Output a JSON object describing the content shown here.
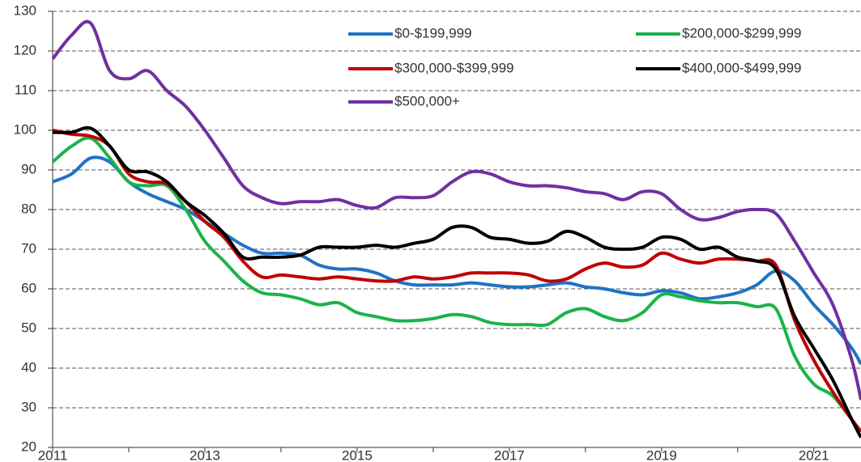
{
  "chart_data": {
    "type": "line",
    "x": [
      2011,
      2011.25,
      2011.5,
      2011.75,
      2012,
      2012.25,
      2012.5,
      2012.75,
      2013,
      2013.25,
      2013.5,
      2013.75,
      2014,
      2014.25,
      2014.5,
      2014.75,
      2015,
      2015.25,
      2015.5,
      2015.75,
      2016,
      2016.25,
      2016.5,
      2016.75,
      2017,
      2017.25,
      2017.5,
      2017.75,
      2018,
      2018.25,
      2018.5,
      2018.75,
      2019,
      2019.25,
      2019.5,
      2019.75,
      2020,
      2020.25,
      2020.5,
      2020.75,
      2021,
      2021.25,
      2021.5,
      2021.62
    ],
    "series": [
      {
        "name": "$0-$199,999",
        "color": "#1f73c4",
        "values": [
          87,
          89,
          93,
          92,
          87,
          84,
          82,
          80,
          77,
          74,
          71,
          69,
          69,
          68.5,
          66,
          65,
          65,
          64,
          62,
          61,
          61,
          61,
          61.5,
          61,
          60.5,
          60.5,
          61,
          61.5,
          60.5,
          60,
          59,
          58.5,
          59.5,
          59,
          57.5,
          58,
          59,
          61,
          64.5,
          62,
          56,
          51,
          45,
          41
        ]
      },
      {
        "name": "$200,000-$299,999",
        "color": "#1bb34a",
        "values": [
          92,
          96,
          98,
          93,
          87,
          86,
          86,
          80,
          72,
          67,
          62,
          59,
          58.5,
          57.5,
          56,
          56.5,
          54,
          53,
          52,
          52,
          52.5,
          53.5,
          53,
          51.5,
          51,
          51,
          51,
          54,
          55,
          53,
          52,
          54,
          58.5,
          58,
          57,
          56.5,
          56.5,
          55.5,
          55,
          43,
          36,
          33,
          27,
          24
        ]
      },
      {
        "name": "$300,000-$399,999",
        "color": "#c00000",
        "values": [
          100,
          99,
          98.5,
          96,
          89,
          87,
          86.5,
          82,
          77,
          73,
          67,
          63,
          63.5,
          63,
          62.5,
          63,
          62.5,
          62,
          62,
          63,
          62.5,
          63,
          64,
          64,
          64,
          63.5,
          62,
          62.5,
          65,
          66.5,
          65.5,
          66,
          69,
          67.5,
          66.5,
          67.5,
          67.5,
          67,
          66,
          52,
          42,
          34,
          27,
          24
        ]
      },
      {
        "name": "$400,000-$499,999",
        "color": "#000000",
        "values": [
          99.5,
          99.5,
          100.5,
          96,
          90,
          89.5,
          87,
          82,
          78.5,
          74,
          68,
          68,
          68,
          68.5,
          70.5,
          70.5,
          70.5,
          71,
          70.5,
          71.5,
          72.5,
          75.5,
          75.5,
          73,
          72.5,
          71.5,
          72,
          74.5,
          73,
          70.5,
          70,
          70.5,
          73,
          72.5,
          70,
          70.5,
          68,
          67,
          65,
          53,
          45,
          37,
          27,
          22.5
        ]
      },
      {
        "name": "$500,000+",
        "color": "#7030a0",
        "values": [
          118,
          124,
          127,
          115,
          113,
          115,
          110,
          106,
          100,
          93,
          86,
          83,
          81.5,
          82,
          82,
          82.5,
          81,
          80.5,
          83,
          83,
          83.5,
          87,
          89.5,
          89,
          87,
          86,
          86,
          85.5,
          84.5,
          84,
          82.5,
          84.5,
          84,
          80,
          77.5,
          78,
          79.5,
          80,
          79,
          72,
          64,
          56,
          42,
          32
        ]
      }
    ],
    "xlim": [
      2011,
      2021.62
    ],
    "xticks": [
      2011,
      2013,
      2015,
      2017,
      2019,
      2021
    ],
    "xminorticks": [
      2012,
      2014,
      2016,
      2018,
      2020
    ],
    "ylim": [
      20,
      130
    ],
    "yticks": [
      20,
      30,
      40,
      50,
      60,
      70,
      80,
      90,
      100,
      110,
      120,
      130
    ],
    "grid": true
  }
}
